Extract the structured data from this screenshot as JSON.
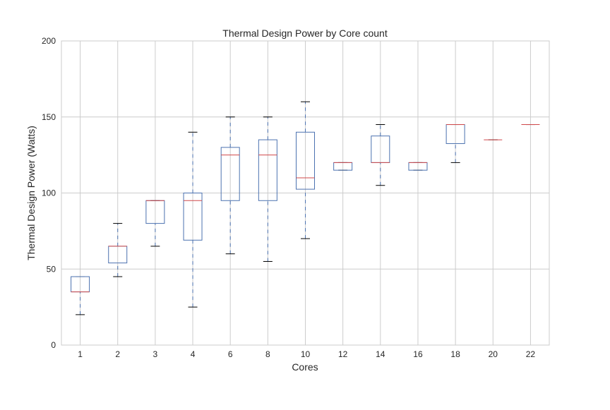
{
  "chart_data": {
    "type": "box",
    "title": "Thermal Design Power by Core count",
    "xlabel": "Cores",
    "ylabel": "Thermal Design Power (Watts)",
    "ylim": [
      0,
      200
    ],
    "yticks": [
      0,
      50,
      100,
      150,
      200
    ],
    "grid": true,
    "categories": [
      "1",
      "2",
      "3",
      "4",
      "6",
      "8",
      "10",
      "12",
      "14",
      "16",
      "18",
      "20",
      "22"
    ],
    "boxes": [
      {
        "whislo": 20,
        "q1": 35,
        "med": 35,
        "q3": 45,
        "whishi": 45
      },
      {
        "whislo": 45,
        "q1": 54,
        "med": 65,
        "q3": 65,
        "whishi": 80
      },
      {
        "whislo": 65,
        "q1": 80,
        "med": 95,
        "q3": 95,
        "whishi": 95
      },
      {
        "whislo": 25,
        "q1": 69,
        "med": 95,
        "q3": 100,
        "whishi": 140
      },
      {
        "whislo": 60,
        "q1": 95,
        "med": 125,
        "q3": 130,
        "whishi": 150
      },
      {
        "whislo": 55,
        "q1": 95,
        "med": 125,
        "q3": 135,
        "whishi": 150
      },
      {
        "whislo": 70,
        "q1": 102.5,
        "med": 110,
        "q3": 140,
        "whishi": 160
      },
      {
        "whislo": 115,
        "q1": 115,
        "med": 120,
        "q3": 120,
        "whishi": 120
      },
      {
        "whislo": 105,
        "q1": 120,
        "med": 120,
        "q3": 137.5,
        "whishi": 145
      },
      {
        "whislo": 115,
        "q1": 115,
        "med": 120,
        "q3": 120,
        "whishi": 120
      },
      {
        "whislo": 120,
        "q1": 132.5,
        "med": 145,
        "q3": 145,
        "whishi": 145
      },
      {
        "whislo": 135,
        "q1": 135,
        "med": 135,
        "q3": 135,
        "whishi": 135
      },
      {
        "whislo": 145,
        "q1": 145,
        "med": 145,
        "q3": 145,
        "whishi": 145
      }
    ],
    "colors": {
      "box": "#4c72b0",
      "median": "#d0484a",
      "cap": "#000000",
      "grid": "#cccccc"
    }
  }
}
